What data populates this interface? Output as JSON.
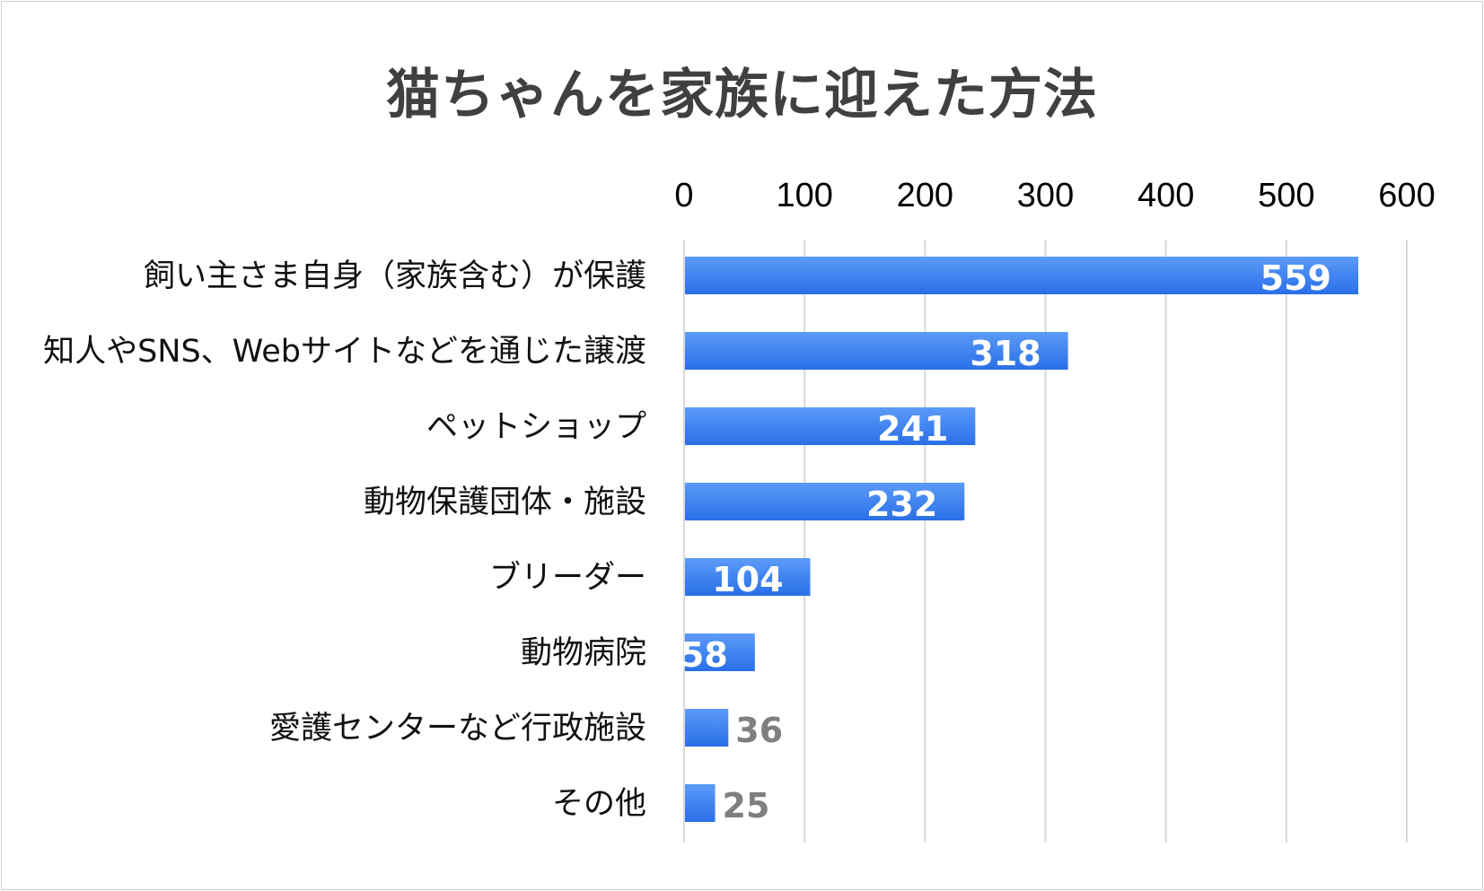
{
  "chart_data": {
    "type": "bar",
    "orientation": "horizontal",
    "title": "猫ちゃんを家族に迎えた方法",
    "categories": [
      "飼い主さま自身（家族含む）が保護",
      "知人やSNS、Webサイトなどを通じた譲渡",
      "ペットショップ",
      "動物保護団体・施設",
      "ブリーダー",
      "動物病院",
      "愛護センターなど行政施設",
      "その他"
    ],
    "values": [
      559,
      318,
      241,
      232,
      104,
      58,
      36,
      25
    ],
    "xlim": [
      0,
      600
    ],
    "xticks": [
      0,
      100,
      200,
      300,
      400,
      500,
      600
    ],
    "tick_labels": [
      "0",
      "100",
      "200",
      "300",
      "400",
      "500",
      "600"
    ],
    "x_axis_position": "top",
    "grid": true,
    "legend": "none",
    "colors": {
      "bar_top": "#5b9bf8",
      "bar_bottom": "#2a6fe8",
      "grid": "#d9d9d9",
      "label_inside": "#ffffff",
      "label_outside": "#7f7f7f",
      "title": "#404040"
    }
  }
}
